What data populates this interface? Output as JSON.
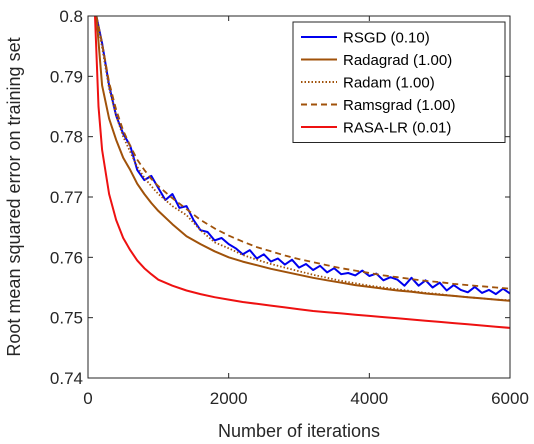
{
  "chart_data": {
    "type": "line",
    "title": "",
    "xlabel": "Number of iterations",
    "ylabel": "Root mean squared error on training set",
    "xlim": [
      0,
      6000
    ],
    "ylim": [
      0.74,
      0.8
    ],
    "xticks": [
      0,
      2000,
      4000,
      6000
    ],
    "yticks": [
      0.74,
      0.75,
      0.76,
      0.77,
      0.78,
      0.79,
      0.8
    ],
    "xtick_labels": [
      "0",
      "2000",
      "4000",
      "6000"
    ],
    "ytick_labels": [
      "0.74",
      "0.75",
      "0.76",
      "0.77",
      "0.78",
      "0.79",
      "0.8"
    ],
    "grid": false,
    "legend_position": "top-right",
    "series": [
      {
        "name": "RSGD (0.10)",
        "color": "#0000ee",
        "dash": "solid",
        "x": [
          120,
          200,
          300,
          400,
          500,
          600,
          700,
          800,
          900,
          1000,
          1100,
          1200,
          1300,
          1400,
          1500,
          1600,
          1700,
          1800,
          1900,
          2000,
          2100,
          2200,
          2300,
          2400,
          2500,
          2600,
          2700,
          2800,
          2900,
          3000,
          3100,
          3200,
          3300,
          3400,
          3500,
          3600,
          3700,
          3800,
          3900,
          4000,
          4100,
          4200,
          4300,
          4400,
          4500,
          4600,
          4700,
          4800,
          4900,
          5000,
          5100,
          5200,
          5300,
          5400,
          5500,
          5600,
          5700,
          5800,
          5900,
          6000
        ],
        "y": [
          0.8,
          0.7955,
          0.7885,
          0.7835,
          0.7805,
          0.7785,
          0.7745,
          0.7728,
          0.7735,
          0.7715,
          0.7695,
          0.7705,
          0.7682,
          0.7685,
          0.7662,
          0.7645,
          0.7642,
          0.7628,
          0.7632,
          0.7622,
          0.7615,
          0.7605,
          0.7612,
          0.7598,
          0.7605,
          0.7593,
          0.7598,
          0.7588,
          0.7596,
          0.7583,
          0.7589,
          0.7579,
          0.7586,
          0.7575,
          0.7582,
          0.7572,
          0.7574,
          0.757,
          0.7578,
          0.7569,
          0.7573,
          0.7562,
          0.7567,
          0.7563,
          0.7553,
          0.7566,
          0.7553,
          0.7562,
          0.755,
          0.7558,
          0.7545,
          0.7554,
          0.7546,
          0.7542,
          0.7551,
          0.7541,
          0.7546,
          0.7539,
          0.7548,
          0.754
        ]
      },
      {
        "name": "Radagrad (1.00)",
        "color": "#a0520a",
        "dash": "solid",
        "x": [
          120,
          200,
          300,
          400,
          500,
          600,
          700,
          800,
          900,
          1000,
          1200,
          1400,
          1600,
          1800,
          2000,
          2200,
          2400,
          2600,
          2800,
          3000,
          3200,
          3400,
          3600,
          3800,
          4000,
          4200,
          4400,
          4600,
          4800,
          5000,
          5200,
          5400,
          5600,
          5800,
          6000
        ],
        "y": [
          0.8,
          0.7885,
          0.783,
          0.7795,
          0.7765,
          0.7745,
          0.7722,
          0.7705,
          0.769,
          0.7677,
          0.7655,
          0.7635,
          0.7622,
          0.761,
          0.76,
          0.7593,
          0.7587,
          0.7581,
          0.7576,
          0.7571,
          0.7566,
          0.7562,
          0.7558,
          0.7554,
          0.7551,
          0.7548,
          0.7545,
          0.7543,
          0.754,
          0.7538,
          0.7536,
          0.7534,
          0.7532,
          0.753,
          0.7528
        ]
      },
      {
        "name": "Radam (1.00)",
        "color": "#a0520a",
        "dash": "dot",
        "x": [
          120,
          200,
          300,
          400,
          500,
          600,
          700,
          800,
          900,
          1000,
          1200,
          1400,
          1600,
          1800,
          2000,
          2200,
          2400,
          2600,
          2800,
          3000,
          3200,
          3400,
          3600,
          3800,
          4000,
          4200,
          4400,
          4600,
          4800,
          5000,
          5200,
          5400,
          5600,
          5800,
          6000
        ],
        "y": [
          0.8,
          0.7948,
          0.788,
          0.7835,
          0.78,
          0.7775,
          0.775,
          0.7732,
          0.7718,
          0.7705,
          0.7685,
          0.767,
          0.7645,
          0.7625,
          0.7615,
          0.7604,
          0.7596,
          0.7589,
          0.7583,
          0.7577,
          0.7571,
          0.7566,
          0.7561,
          0.7557,
          0.7553,
          0.755,
          0.7547,
          0.7544,
          0.7541,
          0.7539,
          0.7536,
          0.7534,
          0.7532,
          0.753,
          0.7529
        ]
      },
      {
        "name": "Ramsgrad (1.00)",
        "color": "#a0520a",
        "dash": "dash",
        "x": [
          120,
          200,
          300,
          400,
          500,
          600,
          700,
          800,
          900,
          1000,
          1200,
          1400,
          1600,
          1800,
          2000,
          2200,
          2400,
          2600,
          2800,
          3000,
          3200,
          3400,
          3600,
          3800,
          4000,
          4200,
          4400,
          4600,
          4800,
          5000,
          5200,
          5400,
          5600,
          5800,
          6000
        ],
        "y": [
          0.8,
          0.7955,
          0.789,
          0.7845,
          0.781,
          0.7785,
          0.7762,
          0.7745,
          0.773,
          0.7718,
          0.7698,
          0.768,
          0.7662,
          0.7648,
          0.7636,
          0.7626,
          0.7617,
          0.761,
          0.7603,
          0.7597,
          0.7592,
          0.7587,
          0.7582,
          0.7578,
          0.7574,
          0.757,
          0.7567,
          0.7564,
          0.7561,
          0.7559,
          0.7556,
          0.7554,
          0.7552,
          0.755,
          0.7548
        ]
      },
      {
        "name": "RASA-LR (0.01)",
        "color": "#ee1111",
        "dash": "solid",
        "x": [
          100,
          150,
          200,
          300,
          400,
          500,
          600,
          700,
          800,
          900,
          1000,
          1200,
          1400,
          1600,
          1800,
          2000,
          2200,
          2400,
          2600,
          2800,
          3000,
          3200,
          3400,
          3600,
          3800,
          4000,
          4200,
          4400,
          4600,
          4800,
          5000,
          5200,
          5400,
          5600,
          5800,
          6000
        ],
        "y": [
          0.8,
          0.785,
          0.7778,
          0.7705,
          0.7662,
          0.7632,
          0.7612,
          0.7595,
          0.7582,
          0.7572,
          0.7563,
          0.7553,
          0.7545,
          0.7539,
          0.7534,
          0.753,
          0.7526,
          0.7523,
          0.752,
          0.7517,
          0.7514,
          0.7511,
          0.7509,
          0.7507,
          0.7505,
          0.7503,
          0.7501,
          0.7499,
          0.7497,
          0.7495,
          0.7493,
          0.7491,
          0.7489,
          0.7487,
          0.7485,
          0.7483
        ]
      }
    ]
  }
}
